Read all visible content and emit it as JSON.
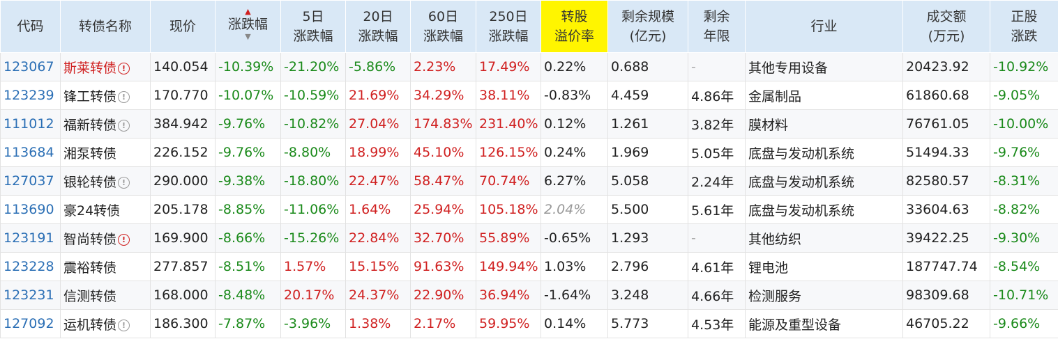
{
  "headers": {
    "code": "代码",
    "name": "转债名称",
    "price": "现价",
    "chg": "涨跌幅",
    "d5_1": "5日",
    "d5_2": "涨跌幅",
    "d20_1": "20日",
    "d20_2": "涨跌幅",
    "d60_1": "60日",
    "d60_2": "涨跌幅",
    "d250_1": "250日",
    "d250_2": "涨跌幅",
    "prem_1": "转股",
    "prem_2": "溢价率",
    "scale_1": "剩余规模",
    "scale_2": "(亿元)",
    "years_1": "剩余",
    "years_2": "年限",
    "industry": "行业",
    "vol_1": "成交额",
    "vol_2": "(万元)",
    "stock_1": "正股",
    "stock_2": "涨跌"
  },
  "sort_icons": {
    "up": "sort-up-icon",
    "down": "sort-down-icon"
  },
  "colors": {
    "header_bg": "#d9e8f6",
    "highlight": "#fff500",
    "up": "#d02020",
    "down": "#1a8a1a",
    "code": "#2b6fb5"
  },
  "rows": [
    {
      "code": "123067",
      "name": "斯莱转债",
      "icon": "!",
      "icon_color": "red",
      "name_red": true,
      "price": "140.054",
      "chg": "-10.39%",
      "d5": "-21.20%",
      "d20": "-5.86%",
      "d60": "2.23%",
      "d250": "17.49%",
      "prem": "0.22%",
      "prem_muted": false,
      "scale": "0.688",
      "years": "-",
      "industry": "其他专用设备",
      "vol": "20423.92",
      "stock": "-10.92%"
    },
    {
      "code": "123239",
      "name": "锋工转债",
      "icon": "!",
      "icon_color": "gray",
      "name_red": false,
      "price": "170.770",
      "chg": "-10.07%",
      "d5": "-10.59%",
      "d20": "21.69%",
      "d60": "34.29%",
      "d250": "38.11%",
      "prem": "-0.83%",
      "prem_muted": false,
      "scale": "4.459",
      "years": "4.86年",
      "industry": "金属制品",
      "vol": "61860.68",
      "stock": "-9.05%"
    },
    {
      "code": "111012",
      "name": "福新转债",
      "icon": "!",
      "icon_color": "gray",
      "name_red": false,
      "price": "384.942",
      "chg": "-9.76%",
      "d5": "-10.82%",
      "d20": "27.04%",
      "d60": "174.83%",
      "d250": "231.40%",
      "prem": "0.12%",
      "prem_muted": false,
      "scale": "1.261",
      "years": "3.82年",
      "industry": "膜材料",
      "vol": "76761.05",
      "stock": "-10.00%"
    },
    {
      "code": "113684",
      "name": "湘泵转债",
      "icon": "",
      "icon_color": "",
      "name_red": false,
      "price": "226.152",
      "chg": "-9.76%",
      "d5": "-8.80%",
      "d20": "18.99%",
      "d60": "45.10%",
      "d250": "126.15%",
      "prem": "0.24%",
      "prem_muted": false,
      "scale": "1.969",
      "years": "5.05年",
      "industry": "底盘与发动机系统",
      "vol": "51494.33",
      "stock": "-9.76%"
    },
    {
      "code": "127037",
      "name": "银轮转债",
      "icon": "!",
      "icon_color": "gray",
      "name_red": false,
      "price": "290.000",
      "chg": "-9.38%",
      "d5": "-18.80%",
      "d20": "22.47%",
      "d60": "58.47%",
      "d250": "70.74%",
      "prem": "6.27%",
      "prem_muted": false,
      "scale": "5.058",
      "years": "2.24年",
      "industry": "底盘与发动机系统",
      "vol": "82580.57",
      "stock": "-8.31%"
    },
    {
      "code": "113690",
      "name": "豪24转债",
      "icon": "",
      "icon_color": "",
      "name_red": false,
      "price": "205.178",
      "chg": "-8.85%",
      "d5": "-11.06%",
      "d20": "1.64%",
      "d60": "25.94%",
      "d250": "105.18%",
      "prem": "2.04%",
      "prem_muted": true,
      "scale": "5.500",
      "years": "5.61年",
      "industry": "底盘与发动机系统",
      "vol": "33604.63",
      "stock": "-8.82%"
    },
    {
      "code": "123191",
      "name": "智尚转债",
      "icon": "!",
      "icon_color": "red",
      "name_red": false,
      "price": "169.900",
      "chg": "-8.66%",
      "d5": "-15.26%",
      "d20": "22.84%",
      "d60": "32.70%",
      "d250": "55.89%",
      "prem": "-0.65%",
      "prem_muted": false,
      "scale": "1.293",
      "years": "-",
      "industry": "其他纺织",
      "vol": "39422.25",
      "stock": "-9.30%"
    },
    {
      "code": "123228",
      "name": "震裕转债",
      "icon": "",
      "icon_color": "",
      "name_red": false,
      "price": "277.857",
      "chg": "-8.51%",
      "d5": "1.57%",
      "d20": "15.15%",
      "d60": "91.63%",
      "d250": "149.94%",
      "prem": "1.03%",
      "prem_muted": false,
      "scale": "2.796",
      "years": "4.61年",
      "industry": "锂电池",
      "vol": "187747.74",
      "stock": "-8.54%"
    },
    {
      "code": "123231",
      "name": "信测转债",
      "icon": "",
      "icon_color": "",
      "name_red": false,
      "price": "168.000",
      "chg": "-8.48%",
      "d5": "20.17%",
      "d20": "24.37%",
      "d60": "22.90%",
      "d250": "36.94%",
      "prem": "-1.64%",
      "prem_muted": false,
      "scale": "3.248",
      "years": "4.66年",
      "industry": "检测服务",
      "vol": "98309.68",
      "stock": "-10.71%"
    },
    {
      "code": "127092",
      "name": "运机转债",
      "icon": "!",
      "icon_color": "gray",
      "name_red": false,
      "price": "186.300",
      "chg": "-7.87%",
      "d5": "-3.96%",
      "d20": "1.38%",
      "d60": "2.17%",
      "d250": "59.95%",
      "prem": "0.14%",
      "prem_muted": false,
      "scale": "5.773",
      "years": "4.53年",
      "industry": "能源及重型设备",
      "vol": "46705.22",
      "stock": "-9.66%"
    }
  ]
}
